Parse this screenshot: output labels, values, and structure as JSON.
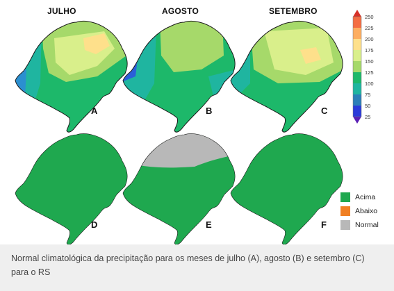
{
  "months": {
    "july": "JULHO",
    "august": "AGOSTO",
    "september": "SETEMBRO"
  },
  "panels": {
    "a": "A",
    "b": "B",
    "c": "C",
    "d": "D",
    "e": "E",
    "f": "F"
  },
  "colorbar": {
    "ticks": [
      "250",
      "225",
      "200",
      "175",
      "150",
      "125",
      "100",
      "75",
      "50",
      "25"
    ],
    "colors": [
      "#d73027",
      "#f46d43",
      "#fdae61",
      "#fee08b",
      "#d9ef8b",
      "#a6d96a",
      "#1db86a",
      "#1fb5a0",
      "#2c7fb8",
      "#2b3bd9",
      "#5a1fb5"
    ]
  },
  "legend": {
    "items": [
      {
        "label": "Acima",
        "color": "#1fa84f"
      },
      {
        "label": "Abaixo",
        "color": "#f07f22"
      },
      {
        "label": "Normal",
        "color": "#b8b8b8"
      }
    ]
  },
  "caption": "Normal climatológica da precipitação para os meses de julho (A), agosto (B) e setembro (C) para o RS"
}
